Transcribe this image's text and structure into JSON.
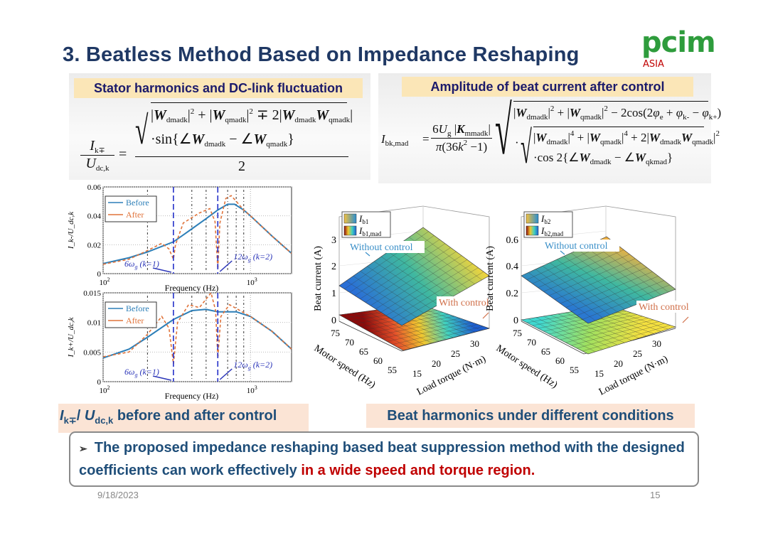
{
  "title": "3. Beatless Method Based on Impedance Reshaping",
  "logo": {
    "main": "pcim",
    "sub": "ASIA",
    "green": "#2e9c3c",
    "red": "#c00000"
  },
  "formula_left": {
    "caption": "Stator harmonics and DC-link fluctuation",
    "lhs_num": [
      [
        "i",
        "I"
      ],
      [
        "_",
        "k∓"
      ]
    ],
    "lhs_den": [
      [
        "i",
        "U"
      ],
      [
        "_",
        "dc,k"
      ]
    ],
    "eq": "=",
    "rad_line1": [
      [
        "t",
        "|"
      ],
      [
        "W",
        "W"
      ],
      [
        "_",
        "dmadk"
      ],
      [
        "t",
        "|"
      ],
      [
        "^",
        "2"
      ],
      [
        "t",
        " + |"
      ],
      [
        "W",
        "W"
      ],
      [
        "_",
        "qmadk"
      ],
      [
        "t",
        "|"
      ],
      [
        "^",
        "2"
      ],
      [
        "t",
        " ∓ 2|"
      ],
      [
        "W",
        "W"
      ],
      [
        "_",
        "dmadk"
      ],
      [
        "W",
        "W"
      ],
      [
        "_",
        "qmadk"
      ],
      [
        "t",
        "|"
      ]
    ],
    "rad_line2": [
      [
        "t",
        "·sin{∠"
      ],
      [
        "W",
        "W"
      ],
      [
        "_",
        "dmadk"
      ],
      [
        "t",
        " − ∠"
      ],
      [
        "W",
        "W"
      ],
      [
        "_",
        "qmadk"
      ],
      [
        "t",
        "}"
      ]
    ],
    "den": "2"
  },
  "formula_right": {
    "caption": "Amplitude of beat current after control",
    "lhs": [
      [
        "i",
        "I"
      ],
      [
        "_",
        "bk,mad"
      ]
    ],
    "eq": "=",
    "coef_num": [
      [
        "t",
        "6"
      ],
      [
        "i",
        "U"
      ],
      [
        "_",
        "g"
      ],
      [
        "t",
        " |"
      ],
      [
        "W",
        "K"
      ],
      [
        "_",
        "mmadk"
      ],
      [
        "t",
        "|"
      ]
    ],
    "coef_den": [
      [
        "i",
        "π"
      ],
      [
        "t",
        "(36"
      ],
      [
        "i",
        "k"
      ],
      [
        "^",
        "2"
      ],
      [
        "t",
        " −1)"
      ]
    ],
    "line1": [
      [
        "t",
        "|"
      ],
      [
        "W",
        "W"
      ],
      [
        "_",
        "dmadk"
      ],
      [
        "t",
        "|"
      ],
      [
        "^",
        "2"
      ],
      [
        "t",
        " + |"
      ],
      [
        "W",
        "W"
      ],
      [
        "_",
        "qmadk"
      ],
      [
        "t",
        "|"
      ],
      [
        "^",
        "2"
      ],
      [
        "t",
        " − 2cos(2"
      ],
      [
        "i",
        "φ"
      ],
      [
        "_",
        "e"
      ],
      [
        "t",
        " + "
      ],
      [
        "i",
        "φ"
      ],
      [
        "_",
        "k-"
      ],
      [
        "t",
        " − "
      ],
      [
        "i",
        "φ"
      ],
      [
        "_",
        "k+"
      ],
      [
        "t",
        ")"
      ]
    ],
    "dot": "·",
    "inner1": [
      [
        "t",
        "|"
      ],
      [
        "W",
        "W"
      ],
      [
        "_",
        "dmadk"
      ],
      [
        "t",
        "|"
      ],
      [
        "^",
        "4"
      ],
      [
        "t",
        " + |"
      ],
      [
        "W",
        "W"
      ],
      [
        "_",
        "qmadk"
      ],
      [
        "t",
        "|"
      ],
      [
        "^",
        "4"
      ],
      [
        "t",
        " + 2|"
      ],
      [
        "W",
        "W"
      ],
      [
        "_",
        "dmadk"
      ],
      [
        "W",
        "W"
      ],
      [
        "_",
        "qmadk"
      ],
      [
        "t",
        "|"
      ],
      [
        "^",
        "2"
      ]
    ],
    "inner2": [
      [
        "t",
        "·cos 2{∠"
      ],
      [
        "W",
        "W"
      ],
      [
        "_",
        "dmadk"
      ],
      [
        "t",
        " − ∠"
      ],
      [
        "W",
        "W"
      ],
      [
        "_",
        "qkmad"
      ],
      [
        "t",
        "}"
      ]
    ]
  },
  "chart_data": [
    {
      "type": "line",
      "ylabel": "I_k-/U_dc,k",
      "xlabel": "Frequency (Hz)",
      "xscale": "log",
      "xlim": [
        100,
        1900
      ],
      "ylim": [
        0,
        0.06
      ],
      "yticks": [
        "0",
        "0.02",
        "0.04",
        "0.06"
      ],
      "ytick_values": [
        0,
        0.02,
        0.04,
        0.06
      ],
      "xticks": [
        {
          "base": "10",
          "exp": "2",
          "value": 100
        },
        {
          "base": "10",
          "exp": "3",
          "value": 1000
        }
      ],
      "legend": [
        "Before",
        "After"
      ],
      "legend_position": "top-left",
      "marker_lines": [
        300,
        600
      ],
      "harmonic_lines": [
        200,
        400,
        500,
        700,
        800,
        900
      ],
      "annotations": [
        {
          "text": "6ω",
          "sub": "g",
          "rest": " (k=1)",
          "at": 300
        },
        {
          "text": "12ω",
          "sub": "g",
          "rest": " (k=2)",
          "at": 600
        }
      ],
      "series": [
        {
          "name": "Before",
          "color": "#2d7fb8",
          "points": [
            [
              100,
              0.007
            ],
            [
              150,
              0.011
            ],
            [
              200,
              0.015
            ],
            [
              300,
              0.022
            ],
            [
              400,
              0.031
            ],
            [
              500,
              0.038
            ],
            [
              600,
              0.044
            ],
            [
              700,
              0.048
            ],
            [
              780,
              0.048
            ],
            [
              900,
              0.044
            ],
            [
              1000,
              0.04
            ],
            [
              1400,
              0.026
            ],
            [
              1900,
              0.014
            ]
          ]
        },
        {
          "name": "After",
          "color": "#e0733a",
          "points": [
            [
              100,
              0.0065
            ],
            [
              150,
              0.01
            ],
            [
              200,
              0.016
            ],
            [
              250,
              0.021
            ],
            [
              280,
              0.017
            ],
            [
              300,
              0.01
            ],
            [
              310,
              0.02
            ],
            [
              350,
              0.035
            ],
            [
              450,
              0.042
            ],
            [
              530,
              0.045
            ],
            [
              575,
              0.036
            ],
            [
              600,
              0.003
            ],
            [
              620,
              0.035
            ],
            [
              680,
              0.052
            ],
            [
              740,
              0.054
            ],
            [
              800,
              0.05
            ],
            [
              900,
              0.044
            ],
            [
              1000,
              0.04
            ],
            [
              1400,
              0.026
            ],
            [
              1900,
              0.014
            ]
          ]
        }
      ]
    },
    {
      "type": "line",
      "ylabel": "I_k+/U_dc,k",
      "xlabel": "Frequency (Hz)",
      "xscale": "log",
      "xlim": [
        100,
        1900
      ],
      "ylim": [
        0,
        0.015
      ],
      "yticks": [
        "0",
        "0.005",
        "0.01",
        "0.015"
      ],
      "ytick_values": [
        0,
        0.005,
        0.01,
        0.015
      ],
      "xticks": [
        {
          "base": "10",
          "exp": "2",
          "value": 100
        },
        {
          "base": "10",
          "exp": "3",
          "value": 1000
        }
      ],
      "legend": [
        "Before",
        "After"
      ],
      "legend_position": "top-left",
      "marker_lines": [
        300,
        600
      ],
      "harmonic_lines": [
        200,
        400,
        500,
        700,
        800,
        900
      ],
      "annotations": [
        {
          "text": "6ω",
          "sub": "g",
          "rest": " (k=1)",
          "at": 300
        },
        {
          "text": "12ω",
          "sub": "g",
          "rest": " (k=2)",
          "at": 600
        }
      ],
      "series": [
        {
          "name": "Before",
          "color": "#2d7fb8",
          "points": [
            [
              100,
              0.004
            ],
            [
              150,
              0.0055
            ],
            [
              200,
              0.0075
            ],
            [
              300,
              0.0105
            ],
            [
              400,
              0.012
            ],
            [
              500,
              0.0122
            ],
            [
              600,
              0.0118
            ],
            [
              800,
              0.0118
            ],
            [
              1000,
              0.011
            ],
            [
              1400,
              0.0085
            ],
            [
              1900,
              0.0055
            ]
          ]
        },
        {
          "name": "After",
          "color": "#e0733a",
          "points": [
            [
              100,
              0.0042
            ],
            [
              150,
              0.005
            ],
            [
              200,
              0.008
            ],
            [
              250,
              0.011
            ],
            [
              280,
              0.009
            ],
            [
              300,
              0.003
            ],
            [
              320,
              0.01
            ],
            [
              380,
              0.013
            ],
            [
              450,
              0.0125
            ],
            [
              540,
              0.015
            ],
            [
              580,
              0.012
            ],
            [
              600,
              0.004
            ],
            [
              630,
              0.011
            ],
            [
              720,
              0.013
            ],
            [
              850,
              0.012
            ],
            [
              1000,
              0.011
            ],
            [
              1400,
              0.0085
            ],
            [
              1900,
              0.0055
            ]
          ]
        }
      ]
    },
    {
      "type": "surface",
      "zlabel": "Beat current (A)",
      "xlabel": "Motor speed (Hz)",
      "ylabel": "Load torque (N·m)",
      "zticks": [
        "0",
        "1",
        "2",
        "3"
      ],
      "speed_ticks": [
        "75",
        "70",
        "65",
        "60",
        "55"
      ],
      "torque_ticks": [
        "15",
        "20",
        "25",
        "30"
      ],
      "legend": [
        {
          "name": "I",
          "sub": "b1"
        },
        {
          "name": "I",
          "sub": "b1,mad"
        }
      ],
      "annotations": [
        "Without control",
        "With control"
      ],
      "series": [
        {
          "name": "I_b1",
          "label": "Without control",
          "range_A": [
            1.2,
            3.3
          ],
          "colors": [
            "#2a6fd6",
            "#3fb8a0",
            "#f2d43b"
          ]
        },
        {
          "name": "I_b1,mad",
          "label": "With control",
          "range_A": [
            0,
            0.3
          ],
          "colors": [
            "#8b0a0a",
            "#e4502a",
            "#f0c830",
            "#40d0c0",
            "#1e5fd0"
          ]
        }
      ]
    },
    {
      "type": "surface",
      "zlabel": "Beat current (A)",
      "xlabel": "Motor speed (Hz)",
      "ylabel": "Load torque (N·m)",
      "zticks": [
        "0",
        "0.2",
        "0.4",
        "0.6"
      ],
      "speed_ticks": [
        "75",
        "70",
        "65",
        "60",
        "55"
      ],
      "torque_ticks": [
        "15",
        "20",
        "25",
        "30"
      ],
      "legend": [
        {
          "name": "I",
          "sub": "b2"
        },
        {
          "name": "I",
          "sub": "b2,mad"
        }
      ],
      "annotations": [
        "Without control",
        "With control"
      ],
      "series": [
        {
          "name": "I_b2",
          "label": "Without control",
          "range_A": [
            0.2,
            0.6
          ],
          "colors": [
            "#2a78d0",
            "#3fb8a0",
            "#f0b040"
          ]
        },
        {
          "name": "I_b2,mad",
          "label": "With control",
          "range_A": [
            0,
            0.05
          ],
          "colors": [
            "#40d8d0",
            "#a0e060",
            "#f4e040"
          ]
        }
      ]
    }
  ],
  "captions": {
    "left_sym": "I",
    "left_sym_sub": "k∓",
    "left_slash": "/ ",
    "left_sym2": "U",
    "left_sym2_sub": "dc,k",
    "left_rest": " before and after control",
    "right": "Beat harmonics under different conditions"
  },
  "conclusion": {
    "bullet": "➢",
    "text_main": "The proposed impedance reshaping based beat suppression method with the designed coefficients can work effectively ",
    "text_highlight": "in a wide speed and torque region."
  },
  "footer": {
    "date": "9/18/2023",
    "page": "15"
  }
}
